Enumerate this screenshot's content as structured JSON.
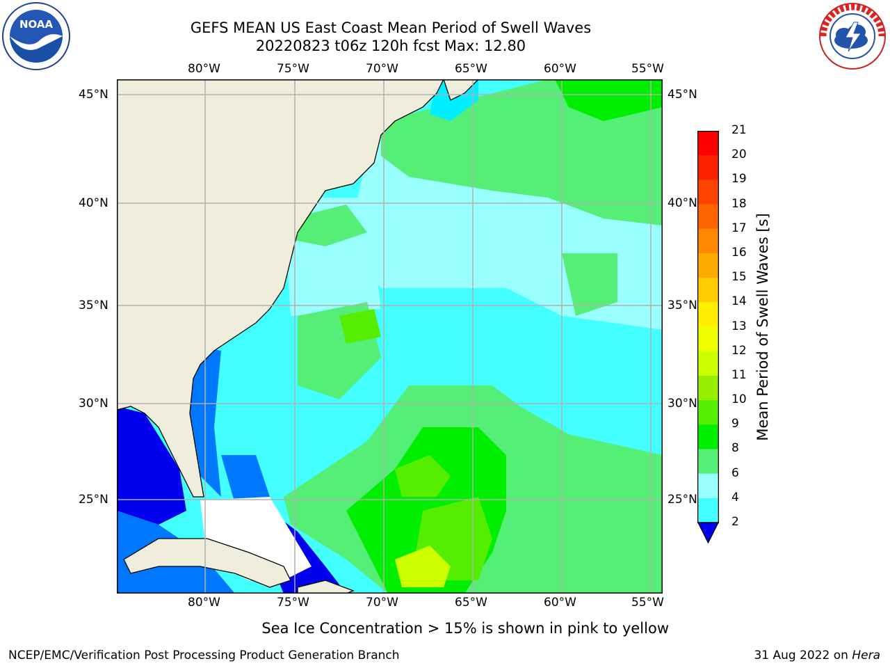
{
  "header": {
    "title_line1": "GEFS MEAN US East Coast Mean Period of Swell Waves",
    "title_line2": "20220823 t06z 120h fcst   Max: 12.80"
  },
  "logos": {
    "left": {
      "text": "NOAA",
      "icon": "noaa-logo-icon"
    },
    "right": {
      "icon": "nws-logo-icon"
    }
  },
  "map": {
    "lon_labels": [
      "80°W",
      "75°W",
      "70°W",
      "65°W",
      "60°W",
      "55°W"
    ],
    "lat_labels": [
      "45°N",
      "40°N",
      "35°N",
      "30°N",
      "25°N"
    ],
    "land_color": "#efeedc",
    "gridline_color": "#b0b0b0"
  },
  "colorbar": {
    "title": "Mean Period of Swell Waves [s]",
    "ticks": [
      "21",
      "20",
      "19",
      "18",
      "17",
      "16",
      "15",
      "14",
      "13",
      "12",
      "11",
      "10",
      "9",
      "8",
      "6",
      "4",
      "2"
    ],
    "colors": [
      "#ff0000",
      "#ff2200",
      "#ff4400",
      "#ff6600",
      "#ff8800",
      "#ffaa00",
      "#ffcc00",
      "#ffee00",
      "#eeff00",
      "#ccff00",
      "#99ee00",
      "#55ee00",
      "#00ee00",
      "#55ee77",
      "#99ffff",
      "#44ffff",
      "#00eeff",
      "#0077ff",
      "#0000ee"
    ]
  },
  "note": "Sea Ice Concentration > 15% is shown in pink to yellow",
  "footer": {
    "left": "NCEP/EMC/Verification Post Processing Product Generation Branch",
    "right_prefix": "31 Aug 2022 on ",
    "right_host": "Hera"
  }
}
